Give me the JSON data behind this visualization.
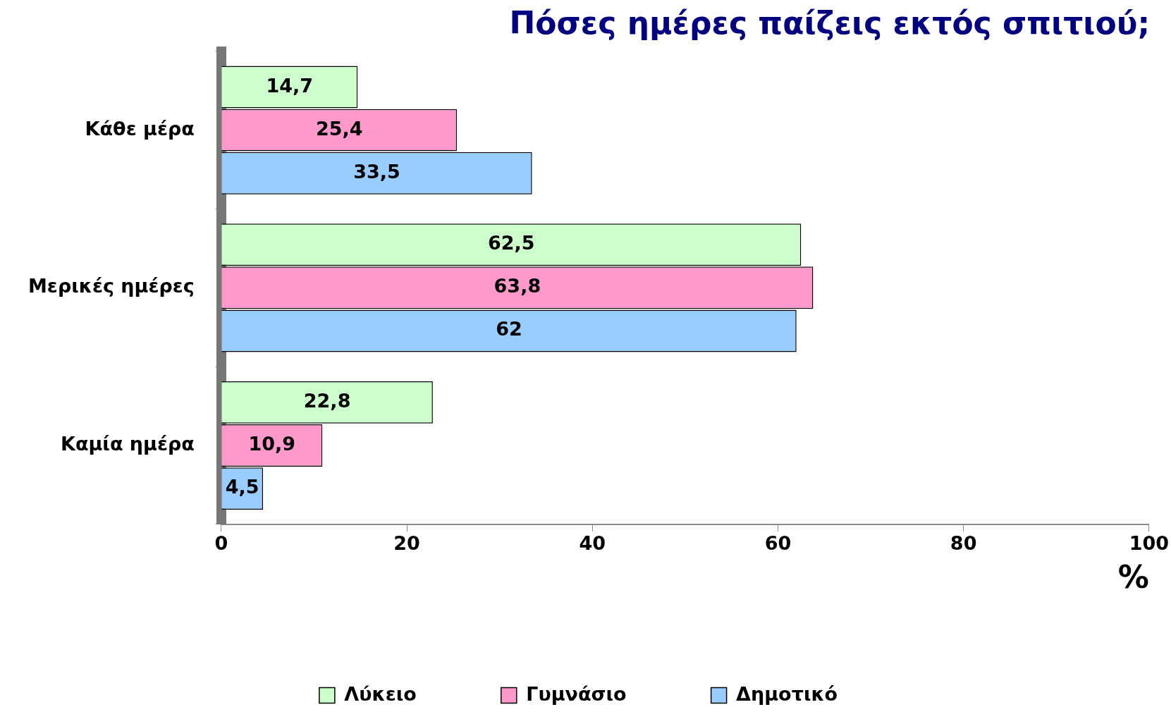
{
  "chart_data": {
    "type": "bar",
    "orientation": "horizontal",
    "title": "Πόσες ημέρες παίζεις εκτός σπιτιού;",
    "xlabel": "%",
    "categories": [
      "Κάθε μέρα",
      "Μερικές ημέρες",
      "Καμία ημέρα"
    ],
    "series": [
      {
        "name": "Λύκειο",
        "color": "#ccffcc",
        "values": [
          14.7,
          62.5,
          22.8
        ],
        "value_labels": [
          "14,7",
          "62,5",
          "22,8"
        ]
      },
      {
        "name": "Γυμνάσιο",
        "color": "#ff99cc",
        "values": [
          25.4,
          63.8,
          10.9
        ],
        "value_labels": [
          "25,4",
          "63,8",
          "10,9"
        ]
      },
      {
        "name": "Δημοτικό",
        "color": "#99ccff",
        "values": [
          33.5,
          62,
          4.5
        ],
        "value_labels": [
          "33,5",
          "62",
          "4,5"
        ]
      }
    ],
    "xlim": [
      0,
      100
    ],
    "xticks": [
      0,
      20,
      40,
      60,
      80,
      100
    ],
    "legend": "bottom"
  }
}
